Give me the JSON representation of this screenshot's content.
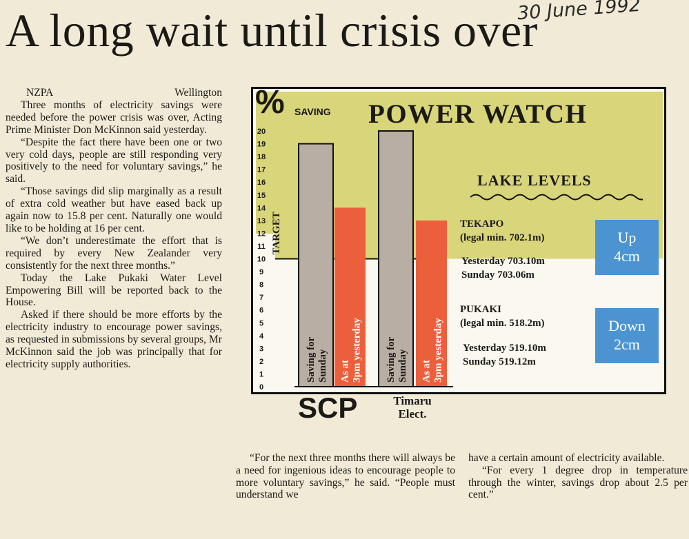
{
  "handwritten_date": "30 June 1992",
  "headline": "A long wait until crisis over",
  "article": {
    "dateline_agency": "NZPA",
    "dateline_city": "Wellington",
    "left_paragraphs": [
      "Three months of electricity savings were needed before the power crisis was over, Acting Prime Minister Don McKinnon said yesterday.",
      "“Despite the fact there have been one or two very cold days, people are still responding very positively to the need for voluntary savings,” he said.",
      "“Those savings did slip marginally as a result of extra cold weather but have eased back up again now to 15.8 per cent. Naturally one would like to be holding at 16 per cent.",
      "“We don’t underestimate the effort that is required by every New Zealander very consistently for the next three months.”",
      "Today the Lake Pukaki Water Level Empowering Bill will be reported back to the House.",
      "Asked if there should be more efforts by the electricity industry to encourage power savings, as requested in submissions by several groups, Mr McKinnon said the job was principally that for electricity supply authorities."
    ],
    "middle_paragraph": "“For the next three months there will always be a need for ingenious ideas to encourage people to more voluntary savings,” he said. “People must understand we",
    "right_continuation": "have a certain amount of electricity available.",
    "right_paragraph": "“For every 1 degree drop in temperature through the winter, savings drop about 2.5 per cent.”"
  },
  "chart_data": {
    "type": "bar",
    "title": "POWER WATCH",
    "ylabel_symbol": "%",
    "ylabel_word": "SAVING",
    "ylim": [
      0,
      20
    ],
    "y_ticks": [
      "0",
      "1",
      "2",
      "3",
      "4",
      "5",
      "6",
      "7",
      "8",
      "9",
      "10",
      "11",
      "12",
      "13",
      "14",
      "15",
      "16",
      "17",
      "18",
      "19",
      "20"
    ],
    "target_label": "TARGET",
    "target_value": 10,
    "groups": [
      {
        "name": "SCP",
        "bars": [
          {
            "label": "Saving for Sunday",
            "value": 19,
            "color": "#b8aea4"
          },
          {
            "label": "As at 3pm yesterday",
            "value": 14,
            "color": "#ec5f3d"
          }
        ]
      },
      {
        "name": "Timaru Elect.",
        "bars": [
          {
            "label": "Saving for Sunday",
            "value": 20,
            "color": "#b8aea4"
          },
          {
            "label": "As at 3pm yesterday",
            "value": 13,
            "color": "#ec5f3d"
          }
        ]
      }
    ]
  },
  "lake_levels": {
    "title": "LAKE LEVELS",
    "lakes": [
      {
        "name": "TEKAPO",
        "legal": "(legal min. 702.1m)",
        "yesterday": "Yesterday 703.10m",
        "sunday": "Sunday 703.06m",
        "change_line1": "Up",
        "change_line2": "4cm"
      },
      {
        "name": "PUKAKI",
        "legal": "(legal min. 518.2m)",
        "yesterday": "Yesterday 519.10m",
        "sunday": "Sunday 519.12m",
        "change_line1": "Down",
        "change_line2": "2cm"
      }
    ],
    "badge_color": "#4b94d1"
  }
}
